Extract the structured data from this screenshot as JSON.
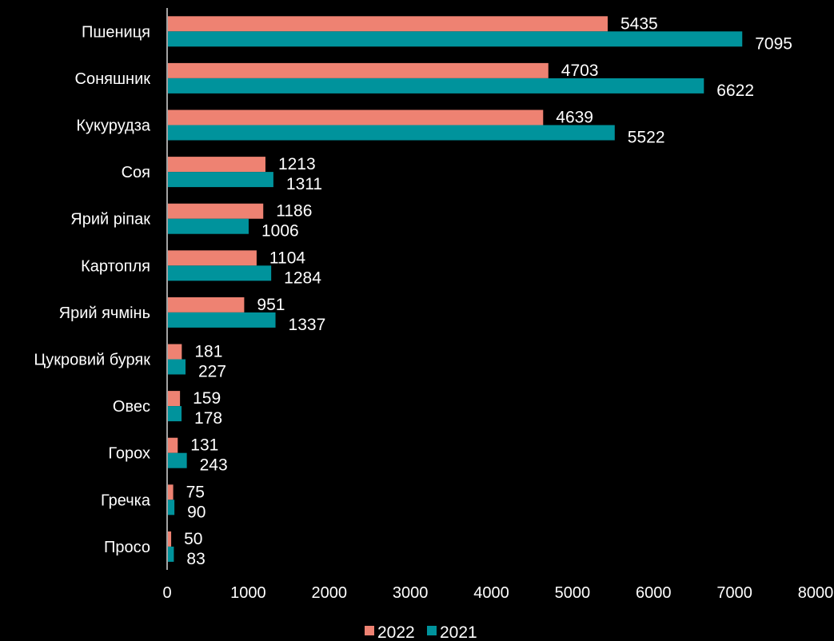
{
  "chart_data": {
    "type": "bar",
    "orientation": "horizontal",
    "categories": [
      "Пшениця",
      "Соняшник",
      "Кукурудза",
      "Соя",
      "Ярий ріпак",
      "Картопля",
      "Ярий ячмінь",
      "Цукровий буряк",
      "Овес",
      "Горох",
      "Гречка",
      "Просо"
    ],
    "series": [
      {
        "name": "2022",
        "color": "#ee8272",
        "values": [
          5435,
          4703,
          4639,
          1213,
          1186,
          1104,
          951,
          181,
          159,
          131,
          75,
          50
        ]
      },
      {
        "name": "2021",
        "color": "#00939c",
        "values": [
          7095,
          6622,
          5522,
          1311,
          1006,
          1284,
          1337,
          227,
          178,
          243,
          90,
          83
        ]
      }
    ],
    "xlim": [
      0,
      8000
    ],
    "x_ticks": [
      0,
      1000,
      2000,
      3000,
      4000,
      5000,
      6000,
      7000,
      8000
    ],
    "grid": false,
    "legend_position": "bottom",
    "data_labels": true,
    "background": "#000000",
    "text_color": "#ffffff"
  }
}
